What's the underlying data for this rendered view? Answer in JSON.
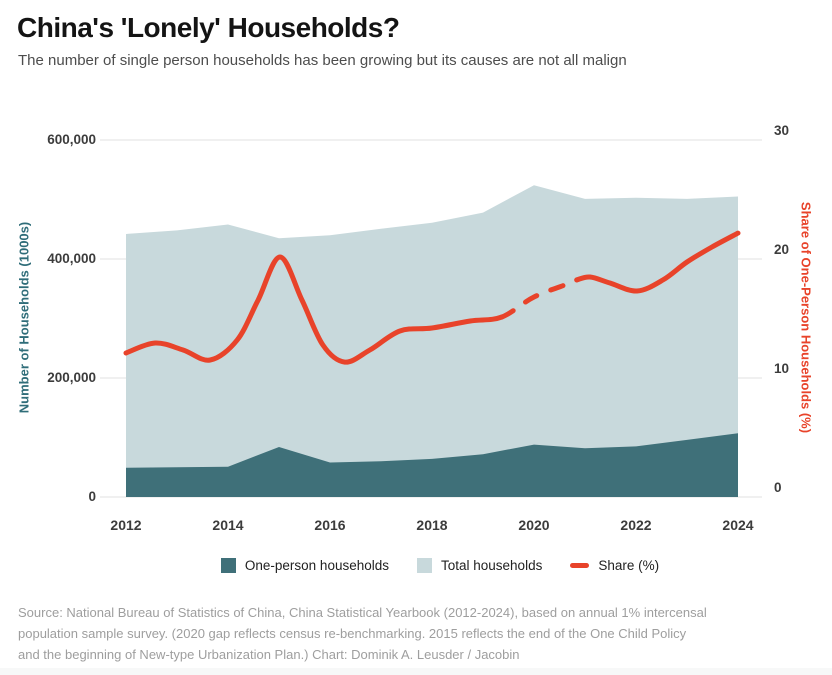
{
  "header": {
    "title": "China's 'Lonely' Households?",
    "subtitle": "The number of single person households has been growing but its causes are not all malign"
  },
  "colors": {
    "one_person": "#3f7079",
    "total": "#c8d9dc",
    "share_line": "#e8432a",
    "left_axis_title": "#2f6d79",
    "right_axis_title": "#e8432a",
    "grid": "#e7e7e7",
    "tick_label": "#3c3c3c",
    "source_text": "#9e9e9e"
  },
  "chart_data": {
    "type": "area+line",
    "x": [
      2012,
      2013,
      2014,
      2015,
      2016,
      2017,
      2018,
      2019,
      2020,
      2021,
      2022,
      2023,
      2024
    ],
    "series": [
      {
        "name": "One-person households",
        "type": "area",
        "axis": "left",
        "values": [
          49000,
          50000,
          51000,
          84000,
          58000,
          60000,
          64000,
          72000,
          88000,
          82000,
          85000,
          96000,
          107000
        ]
      },
      {
        "name": "Total households",
        "type": "area",
        "axis": "left",
        "values": [
          442000,
          448000,
          458000,
          435000,
          440000,
          451000,
          461000,
          478000,
          524000,
          501000,
          503000,
          501000,
          505000
        ]
      },
      {
        "name": "Share (%)",
        "type": "line",
        "axis": "right",
        "values": [
          12.1,
          12.4,
          13.2,
          20.2,
          11.7,
          13.9,
          14.2,
          15.1,
          16.8,
          18.4,
          17.3,
          19.8,
          22.2
        ],
        "dashed_from": 2019.37,
        "dashed_to": 2020.84,
        "dash_note": "dashed segment reflects 2020 census re-benchmarking gap"
      }
    ],
    "share_curve_points": [
      [
        2012.0,
        12.1
      ],
      [
        2012.57,
        12.94
      ],
      [
        2013.12,
        12.35
      ],
      [
        2013.65,
        11.51
      ],
      [
        2014.18,
        13.19
      ],
      [
        2014.59,
        16.55
      ],
      [
        2015.02,
        20.17
      ],
      [
        2015.45,
        16.55
      ],
      [
        2015.86,
        12.77
      ],
      [
        2016.29,
        11.34
      ],
      [
        2016.78,
        12.35
      ],
      [
        2017.37,
        13.95
      ],
      [
        2018.0,
        14.2
      ],
      [
        2018.75,
        14.79
      ],
      [
        2019.37,
        15.13
      ],
      [
        2020.0,
        16.81
      ],
      [
        2020.71,
        17.98
      ],
      [
        2020.84,
        18.24
      ],
      [
        2021.1,
        18.49
      ],
      [
        2021.49,
        17.98
      ],
      [
        2022.02,
        17.31
      ],
      [
        2022.53,
        18.24
      ],
      [
        2023.0,
        19.75
      ],
      [
        2023.49,
        21.01
      ],
      [
        2024.0,
        22.18
      ]
    ],
    "left_axis": {
      "label": "Number of Households (1000s)",
      "ticks": [
        0,
        200000,
        400000,
        600000
      ],
      "tick_labels": [
        "0",
        "200,000",
        "400,000",
        "600,000"
      ],
      "range": [
        0,
        600000
      ]
    },
    "right_axis": {
      "label": "Share of One-Person Households (%)",
      "ticks": [
        0,
        10,
        20,
        30
      ],
      "tick_labels": [
        "0",
        "10",
        "20",
        "30"
      ],
      "range": [
        0,
        30
      ]
    },
    "x_ticks": [
      2012,
      2014,
      2016,
      2018,
      2020,
      2022,
      2024
    ],
    "grid": "horizontal",
    "legend_position": "bottom"
  },
  "legend": {
    "items": [
      {
        "label": "One-person households",
        "swatch": "square"
      },
      {
        "label": "Total households",
        "swatch": "square"
      },
      {
        "label": "Share (%)",
        "swatch": "dash"
      }
    ]
  },
  "source": {
    "lines": [
      "Source: National Bureau of Statistics of China, China Statistical Yearbook (2012-2024), based on annual 1% intercensal",
      "population sample survey. (2020 gap reflects census re-benchmarking. 2015 reflects the end of the One Child Policy",
      "and the beginning of New-type Urbanization Plan.) Chart: Dominik A. Leusder / Jacobin"
    ]
  }
}
